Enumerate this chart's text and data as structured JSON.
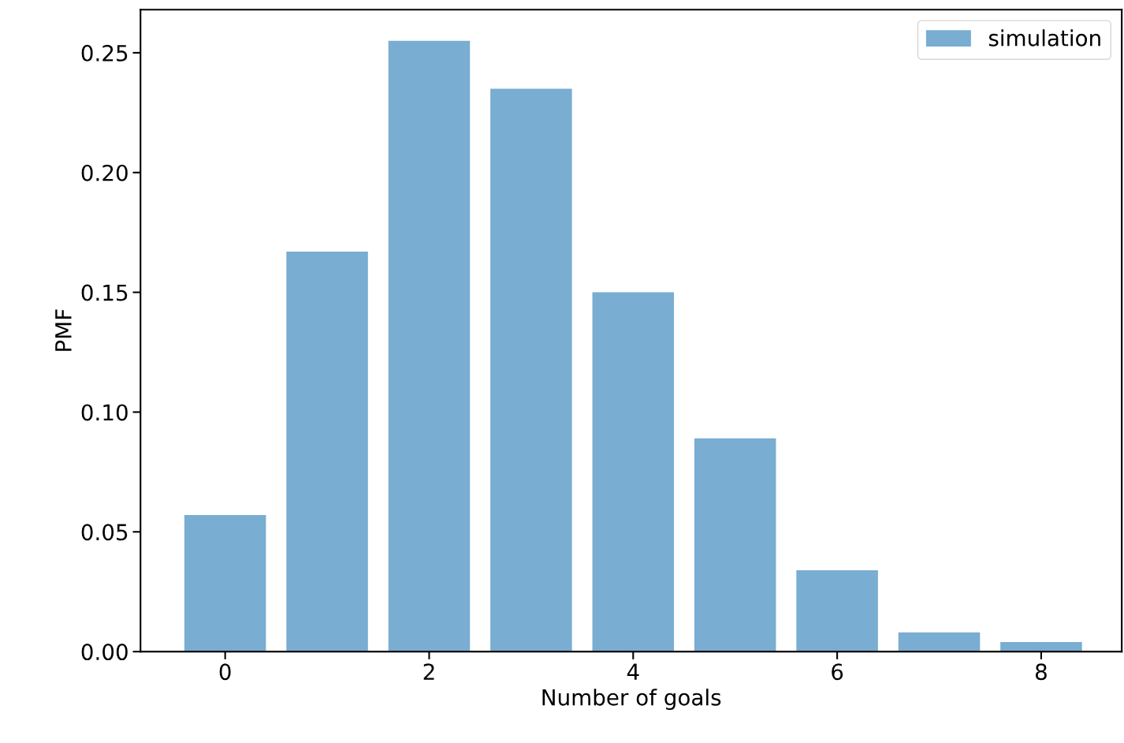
{
  "chart_data": {
    "type": "bar",
    "xlabel": "Number of goals",
    "ylabel": "PMF",
    "x": [
      0,
      1,
      2,
      3,
      4,
      5,
      6,
      7,
      8
    ],
    "series": [
      {
        "name": "simulation",
        "color": "#79add2",
        "values": [
          0.057,
          0.167,
          0.255,
          0.235,
          0.15,
          0.089,
          0.034,
          0.008,
          0.004
        ]
      }
    ],
    "xlim": [
      -0.83,
      8.79
    ],
    "xticks": [
      0,
      2,
      4,
      6,
      8
    ],
    "ylim": [
      0,
      0.268
    ],
    "yticks": [
      {
        "value": 0,
        "label": "0.00"
      },
      {
        "value": 0.05,
        "label": "0.05"
      },
      {
        "value": 0.1,
        "label": "0.10"
      },
      {
        "value": 0.15,
        "label": "0.15"
      },
      {
        "value": 0.2,
        "label": "0.20"
      },
      {
        "value": 0.25,
        "label": "0.25"
      }
    ],
    "grid": false,
    "legend": "top right"
  }
}
